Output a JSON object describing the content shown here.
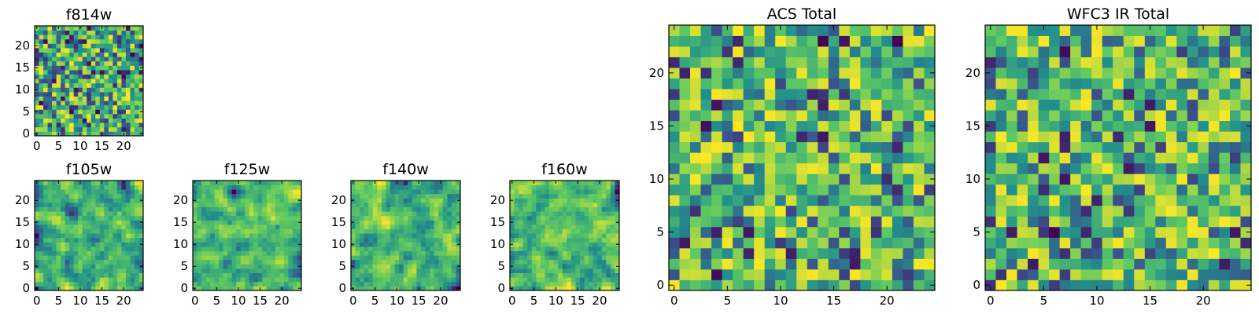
{
  "figure": {
    "title": ""
  },
  "colormap": [
    "#440154",
    "#3b528b",
    "#21918c",
    "#5ec962",
    "#fde725"
  ],
  "chart_data": [
    {
      "id": "f814w",
      "type": "heatmap",
      "title": "f814w",
      "grid": [
        25,
        25
      ],
      "xticks": [
        0,
        5,
        10,
        15,
        20
      ],
      "yticks": [
        0,
        5,
        10,
        15,
        20
      ],
      "xlim": [
        -0.5,
        24.5
      ],
      "ylim": [
        -0.5,
        24.5
      ],
      "seed": 11,
      "texture": "fine"
    },
    {
      "id": "f105w",
      "type": "heatmap",
      "title": "f105w",
      "grid": [
        25,
        25
      ],
      "xticks": [
        0,
        5,
        10,
        15,
        20
      ],
      "yticks": [
        0,
        5,
        10,
        15,
        20
      ],
      "xlim": [
        -0.5,
        24.5
      ],
      "ylim": [
        -0.5,
        24.5
      ],
      "seed": 23,
      "texture": "smooth"
    },
    {
      "id": "f125w",
      "type": "heatmap",
      "title": "f125w",
      "grid": [
        25,
        25
      ],
      "xticks": [
        0,
        5,
        10,
        15,
        20
      ],
      "yticks": [
        0,
        5,
        10,
        15,
        20
      ],
      "xlim": [
        -0.5,
        24.5
      ],
      "ylim": [
        -0.5,
        24.5
      ],
      "seed": 37,
      "texture": "smooth"
    },
    {
      "id": "f140w",
      "type": "heatmap",
      "title": "f140w",
      "grid": [
        25,
        25
      ],
      "xticks": [
        0,
        5,
        10,
        15,
        20
      ],
      "yticks": [
        0,
        5,
        10,
        15,
        20
      ],
      "xlim": [
        -0.5,
        24.5
      ],
      "ylim": [
        -0.5,
        24.5
      ],
      "seed": 41,
      "texture": "smooth"
    },
    {
      "id": "f160w",
      "type": "heatmap",
      "title": "f160w",
      "grid": [
        25,
        25
      ],
      "xticks": [
        0,
        5,
        10,
        15,
        20
      ],
      "yticks": [
        0,
        5,
        10,
        15,
        20
      ],
      "xlim": [
        -0.5,
        24.5
      ],
      "ylim": [
        -0.5,
        24.5
      ],
      "seed": 53,
      "texture": "smooth"
    },
    {
      "id": "acs-total",
      "type": "heatmap",
      "title": "ACS Total",
      "grid": [
        25,
        25
      ],
      "xticks": [
        0,
        5,
        10,
        15,
        20
      ],
      "yticks": [
        0,
        5,
        10,
        15,
        20
      ],
      "xlim": [
        -0.5,
        24.5
      ],
      "ylim": [
        -0.5,
        24.5
      ],
      "seed": 67,
      "texture": "coarse"
    },
    {
      "id": "wfc3-ir-total",
      "type": "heatmap",
      "title": "WFC3 IR Total",
      "grid": [
        25,
        25
      ],
      "xticks": [
        0,
        5,
        10,
        15,
        20
      ],
      "yticks": [
        0,
        5,
        10,
        15,
        20
      ],
      "xlim": [
        -0.5,
        24.5
      ],
      "ylim": [
        -0.5,
        24.5
      ],
      "seed": 79,
      "texture": "coarse"
    }
  ]
}
